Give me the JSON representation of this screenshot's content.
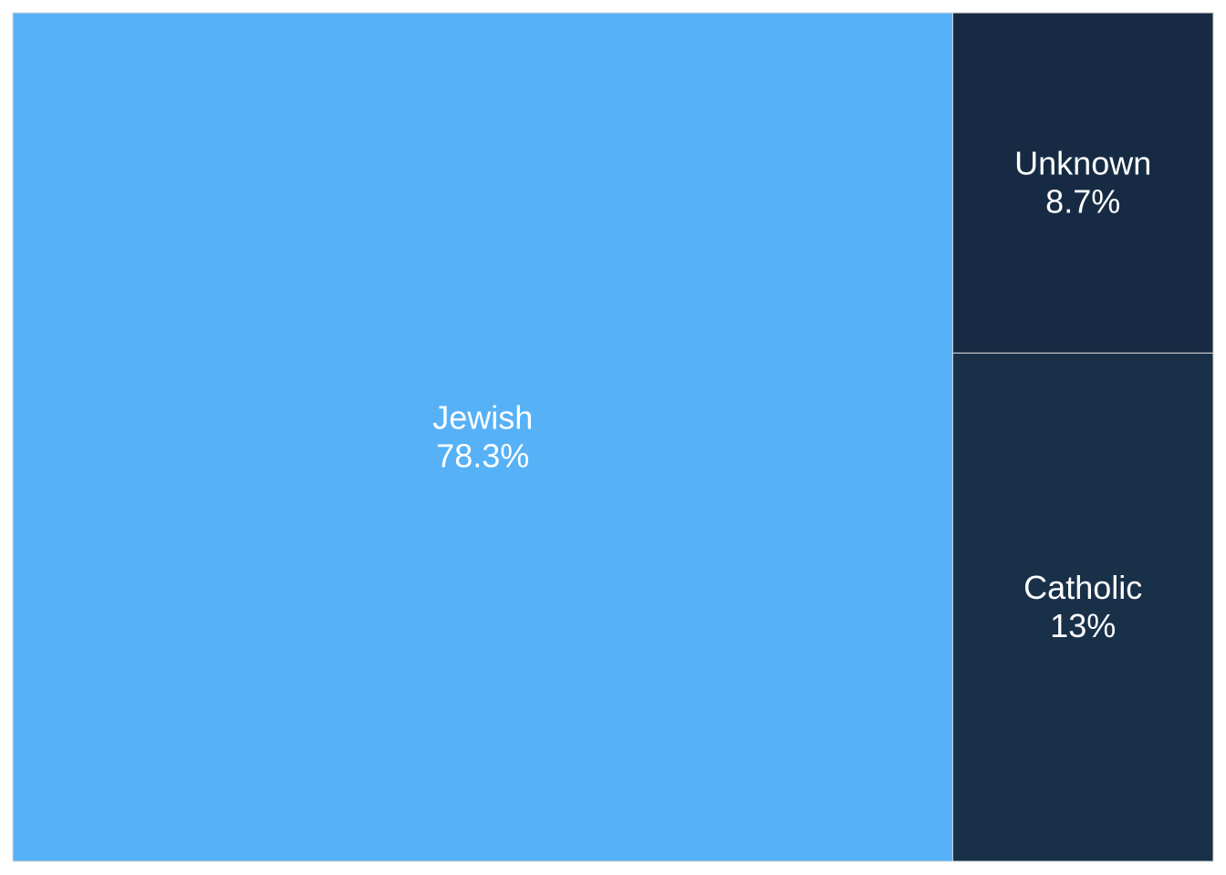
{
  "chart_data": {
    "type": "treemap",
    "title": "",
    "items": [
      {
        "label": "Jewish",
        "value": 78.3,
        "value_label": "78.3%",
        "color": "#56b1f7"
      },
      {
        "label": "Catholic",
        "value": 13,
        "value_label": "13%",
        "color": "#193049"
      },
      {
        "label": "Unknown",
        "value": 8.7,
        "value_label": "8.7%",
        "color": "#162b43"
      }
    ],
    "tile_border_color": "#d9d9d9",
    "label_color": "#ffffff",
    "legend": "none"
  }
}
